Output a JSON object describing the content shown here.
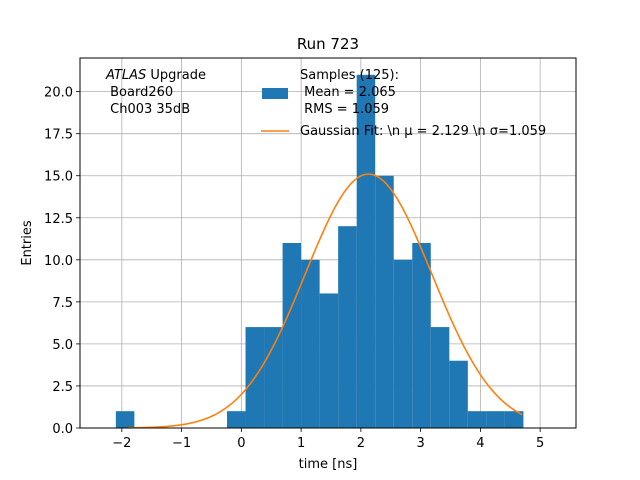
{
  "chart_data": {
    "type": "bar",
    "title": "Run 723",
    "xlabel": "time [ns]",
    "ylabel": "Entries",
    "xlim": [
      -2.7,
      5.6
    ],
    "ylim": [
      0,
      22
    ],
    "grid": true,
    "x_ticks": [
      -2,
      -1,
      0,
      1,
      2,
      3,
      4,
      5
    ],
    "x_tick_labels": [
      "−2",
      "−1",
      "0",
      "1",
      "2",
      "3",
      "4",
      "5"
    ],
    "y_ticks": [
      0,
      2.5,
      5,
      7.5,
      10,
      12.5,
      15,
      17.5,
      20
    ],
    "y_tick_labels": [
      "0.0",
      "2.5",
      "5.0",
      "7.5",
      "10.0",
      "12.5",
      "15.0",
      "17.5",
      "20.0"
    ],
    "histogram": {
      "name": "Samples (125):\n Mean = 2.065\n RMS = 1.059",
      "color": "#1f77b4",
      "bin_edges": [
        -2.1,
        -1.79,
        -1.48,
        -1.17,
        -0.86,
        -0.55,
        -0.24,
        0.07,
        0.38,
        0.69,
        1.0,
        1.31,
        1.62,
        1.93,
        2.24,
        2.55,
        2.86,
        3.17,
        3.48,
        3.79,
        4.1,
        4.41,
        4.72,
        5.03
      ],
      "counts": [
        1,
        0,
        0,
        0,
        0,
        0,
        1,
        6,
        6,
        11,
        10,
        8,
        12,
        21,
        15,
        10,
        11,
        6,
        4,
        1,
        1,
        1,
        0
      ]
    },
    "fit": {
      "name": "Gaussian Fit: \\n μ = 2.129 \\n σ=1.059",
      "color": "#ff7f0e",
      "mu": 2.129,
      "sigma": 1.059,
      "amplitude": 15.1,
      "x_range": [
        -1.9,
        4.7
      ]
    },
    "legend_placement": "top-center",
    "annotation": {
      "line1_italic": "ATLAS",
      "line1_rest": " Upgrade",
      "line2": " Board260",
      "line3": " Ch003 35dB"
    }
  }
}
